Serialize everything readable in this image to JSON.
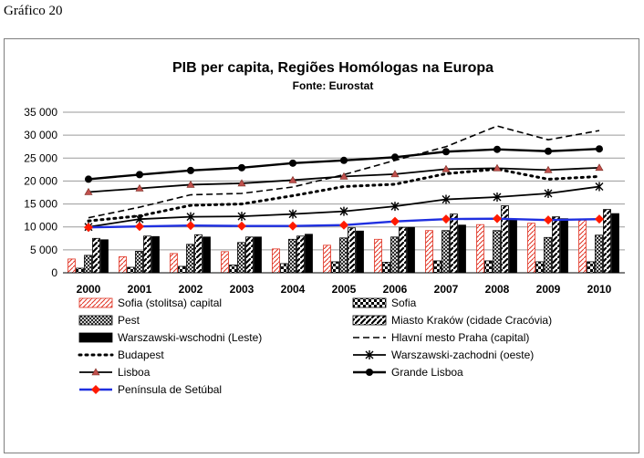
{
  "page_label": "Gráfico 20",
  "chart_data": {
    "type": "bar",
    "title": "PIB per capita, Regiões Homólogas na Europa",
    "subtitle": "Fonte: Eurostat",
    "categories": [
      "2000",
      "2001",
      "2002",
      "2003",
      "2004",
      "2005",
      "2006",
      "2007",
      "2008",
      "2009",
      "2010"
    ],
    "ylim": [
      0,
      35000
    ],
    "yticks": [
      0,
      5000,
      10000,
      15000,
      20000,
      25000,
      30000,
      35000
    ],
    "ytick_labels": [
      "0",
      "5 000",
      "10 000",
      "15 000",
      "20 000",
      "25 000",
      "30 000",
      "35 000"
    ],
    "grid": true,
    "legend_position": "bottom",
    "bar_series": [
      {
        "name": "Sofia (stolitsa) capital",
        "values": [
          3000,
          3500,
          4200,
          4600,
          5200,
          6000,
          7300,
          9200,
          10500,
          10800,
          11500
        ]
      },
      {
        "name": "Sofia",
        "values": [
          1000,
          1200,
          1400,
          1700,
          2000,
          2400,
          2300,
          2600,
          2600,
          2400,
          2400
        ]
      },
      {
        "name": "Pest",
        "values": [
          3800,
          4700,
          6200,
          6600,
          7300,
          7600,
          7800,
          9200,
          9200,
          7700,
          8200
        ]
      },
      {
        "name": "Miasto Kraków (cidade Cracóvia)",
        "values": [
          7500,
          8000,
          8300,
          7800,
          8000,
          9800,
          9900,
          12800,
          14600,
          12200,
          13800
        ]
      },
      {
        "name": "Warszawski-wschodni (Leste)",
        "values": [
          7200,
          7900,
          7800,
          7800,
          8400,
          9100,
          9900,
          10400,
          11700,
          11800,
          12900
        ]
      }
    ],
    "line_series": [
      {
        "name": "Hlavní mesto Praha (capital)",
        "values": [
          12000,
          14300,
          17000,
          17300,
          18700,
          21400,
          24500,
          27500,
          32000,
          29000,
          31000
        ]
      },
      {
        "name": "Budapest",
        "values": [
          11300,
          12400,
          14700,
          15000,
          16800,
          18800,
          19300,
          21600,
          22600,
          20400,
          21000
        ]
      },
      {
        "name": "Warszawski-zachodni (oeste)",
        "values": [
          10000,
          11700,
          12200,
          12300,
          12800,
          13400,
          14500,
          16000,
          16500,
          17300,
          18800
        ]
      },
      {
        "name": "Lisboa",
        "values": [
          17600,
          18400,
          19200,
          19500,
          20200,
          21000,
          21500,
          22600,
          22800,
          22400,
          22900
        ]
      },
      {
        "name": "Grande Lisboa",
        "values": [
          20400,
          21400,
          22300,
          22900,
          23900,
          24500,
          25200,
          26400,
          26900,
          26500,
          27000
        ]
      },
      {
        "name": "Península de Setúbal",
        "values": [
          9900,
          10100,
          10300,
          10200,
          10200,
          10400,
          11200,
          11700,
          11800,
          11500,
          11700
        ]
      }
    ]
  }
}
